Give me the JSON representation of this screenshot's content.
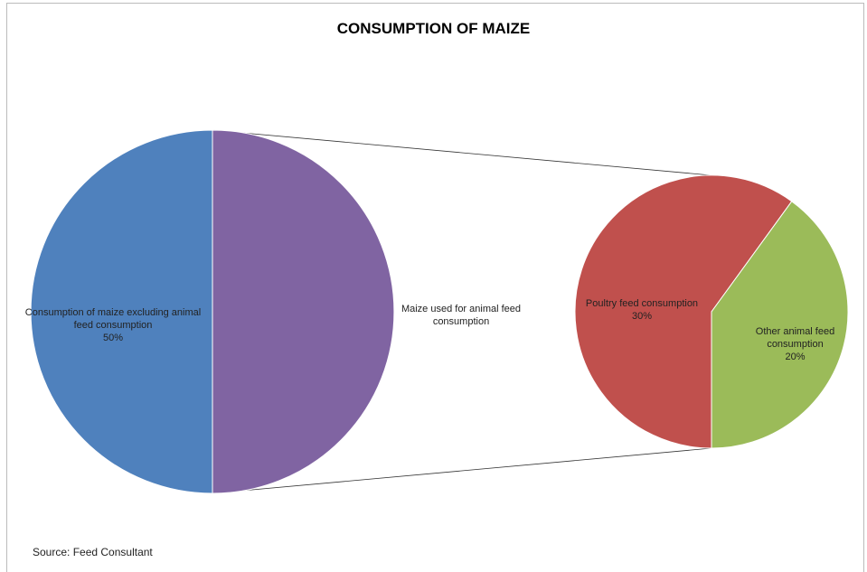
{
  "chart_data": {
    "type": "pie-of-pie",
    "title": "CONSUMPTION OF MAIZE",
    "source": "Source: Feed Consultant",
    "main": {
      "categories": [
        "Consumption of maize excluding animal feed consumption",
        "Maize used for animal feed consumption"
      ],
      "values": [
        50,
        50
      ],
      "value_labels": [
        "50%",
        null
      ],
      "colors": [
        "#4f81bd",
        "#8064a2"
      ]
    },
    "secondary": {
      "categories": [
        "Poultry feed consumption",
        "Other animal feed consumption"
      ],
      "values": [
        30,
        20
      ],
      "value_labels": [
        "30%",
        "20%"
      ],
      "colors": [
        "#c0504d",
        "#9bbb59"
      ]
    }
  }
}
